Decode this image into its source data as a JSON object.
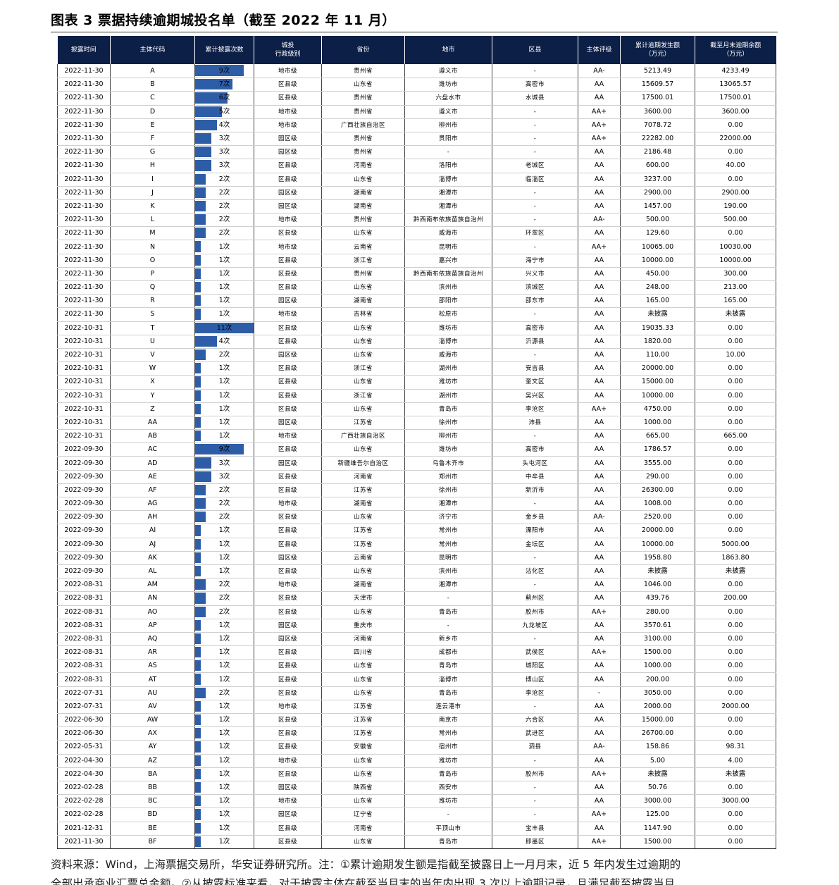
{
  "title": "图表 3 票据持续逾期城投名单（截至 2022 年 11 月）",
  "headers": [
    "披露时间",
    "主体代码",
    "累计披露次数",
    "城投\n行政级别",
    "省份",
    "地市",
    "区县",
    "主体评级",
    "累计逾期发生额\n（万元）",
    "截至月末逾期余额\n（万元）"
  ],
  "max_count": 11,
  "rows": [
    [
      "2022-11-30",
      "A",
      9,
      "地市级",
      "贵州省",
      "遵义市",
      "-",
      "AA-",
      "5213.49",
      "4233.49"
    ],
    [
      "2022-11-30",
      "B",
      7,
      "区县级",
      "山东省",
      "潍坊市",
      "高密市",
      "AA",
      "15609.57",
      "13065.57"
    ],
    [
      "2022-11-30",
      "C",
      6,
      "区县级",
      "贵州省",
      "六盘水市",
      "水城县",
      "AA",
      "17500.01",
      "17500.01"
    ],
    [
      "2022-11-30",
      "D",
      5,
      "地市级",
      "贵州省",
      "遵义市",
      "-",
      "AA+",
      "3600.00",
      "3600.00"
    ],
    [
      "2022-11-30",
      "E",
      4,
      "地市级",
      "广西壮族自治区",
      "柳州市",
      "-",
      "AA+",
      "7078.72",
      "0.00"
    ],
    [
      "2022-11-30",
      "F",
      3,
      "园区级",
      "贵州省",
      "贵阳市",
      "-",
      "AA+",
      "22282.00",
      "22000.00"
    ],
    [
      "2022-11-30",
      "G",
      3,
      "园区级",
      "贵州省",
      "-",
      "-",
      "AA",
      "2186.48",
      "0.00"
    ],
    [
      "2022-11-30",
      "H",
      3,
      "区县级",
      "河南省",
      "洛阳市",
      "老城区",
      "AA",
      "600.00",
      "40.00"
    ],
    [
      "2022-11-30",
      "I",
      2,
      "区县级",
      "山东省",
      "淄博市",
      "临淄区",
      "AA",
      "3237.00",
      "0.00"
    ],
    [
      "2022-11-30",
      "J",
      2,
      "园区级",
      "湖南省",
      "湘潭市",
      "-",
      "AA",
      "2900.00",
      "2900.00"
    ],
    [
      "2022-11-30",
      "K",
      2,
      "园区级",
      "湖南省",
      "湘潭市",
      "-",
      "AA",
      "1457.00",
      "190.00"
    ],
    [
      "2022-11-30",
      "L",
      2,
      "地市级",
      "贵州省",
      "黔西南布依族苗族自治州",
      "-",
      "AA-",
      "500.00",
      "500.00"
    ],
    [
      "2022-11-30",
      "M",
      2,
      "区县级",
      "山东省",
      "威海市",
      "环翠区",
      "AA",
      "129.60",
      "0.00"
    ],
    [
      "2022-11-30",
      "N",
      1,
      "地市级",
      "云南省",
      "昆明市",
      "-",
      "AA+",
      "10065.00",
      "10030.00"
    ],
    [
      "2022-11-30",
      "O",
      1,
      "区县级",
      "浙江省",
      "嘉兴市",
      "海宁市",
      "AA",
      "10000.00",
      "10000.00"
    ],
    [
      "2022-11-30",
      "P",
      1,
      "区县级",
      "贵州省",
      "黔西南布依族苗族自治州",
      "兴义市",
      "AA",
      "450.00",
      "300.00"
    ],
    [
      "2022-11-30",
      "Q",
      1,
      "区县级",
      "山东省",
      "滨州市",
      "滨城区",
      "AA",
      "248.00",
      "213.00"
    ],
    [
      "2022-11-30",
      "R",
      1,
      "园区级",
      "湖南省",
      "邵阳市",
      "邵东市",
      "AA",
      "165.00",
      "165.00"
    ],
    [
      "2022-11-30",
      "S",
      1,
      "地市级",
      "吉林省",
      "松原市",
      "-",
      "AA",
      "未披露",
      "未披露"
    ],
    [
      "2022-10-31",
      "T",
      11,
      "区县级",
      "山东省",
      "潍坊市",
      "高密市",
      "AA",
      "19035.33",
      "0.00"
    ],
    [
      "2022-10-31",
      "U",
      4,
      "区县级",
      "山东省",
      "淄博市",
      "沂源县",
      "AA",
      "1820.00",
      "0.00"
    ],
    [
      "2022-10-31",
      "V",
      2,
      "园区级",
      "山东省",
      "威海市",
      "-",
      "AA",
      "110.00",
      "10.00"
    ],
    [
      "2022-10-31",
      "W",
      1,
      "区县级",
      "浙江省",
      "湖州市",
      "安吉县",
      "AA",
      "20000.00",
      "0.00"
    ],
    [
      "2022-10-31",
      "X",
      1,
      "区县级",
      "山东省",
      "潍坊市",
      "奎文区",
      "AA",
      "15000.00",
      "0.00"
    ],
    [
      "2022-10-31",
      "Y",
      1,
      "区县级",
      "浙江省",
      "湖州市",
      "吴兴区",
      "AA",
      "10000.00",
      "0.00"
    ],
    [
      "2022-10-31",
      "Z",
      1,
      "区县级",
      "山东省",
      "青岛市",
      "李沧区",
      "AA+",
      "4750.00",
      "0.00"
    ],
    [
      "2022-10-31",
      "AA",
      1,
      "园区级",
      "江苏省",
      "徐州市",
      "沛县",
      "AA",
      "1000.00",
      "0.00"
    ],
    [
      "2022-10-31",
      "AB",
      1,
      "地市级",
      "广西壮族自治区",
      "柳州市",
      "-",
      "AA",
      "665.00",
      "665.00"
    ],
    [
      "2022-09-30",
      "AC",
      9,
      "区县级",
      "山东省",
      "潍坊市",
      "高密市",
      "AA",
      "1786.57",
      "0.00"
    ],
    [
      "2022-09-30",
      "AD",
      3,
      "园区级",
      "新疆维吾尔自治区",
      "乌鲁木齐市",
      "头屯河区",
      "AA",
      "3555.00",
      "0.00"
    ],
    [
      "2022-09-30",
      "AE",
      3,
      "区县级",
      "河南省",
      "郑州市",
      "中牟县",
      "AA",
      "290.00",
      "0.00"
    ],
    [
      "2022-09-30",
      "AF",
      2,
      "区县级",
      "江苏省",
      "徐州市",
      "新沂市",
      "AA",
      "26300.00",
      "0.00"
    ],
    [
      "2022-09-30",
      "AG",
      2,
      "地市级",
      "湖南省",
      "湘潭市",
      "-",
      "AA",
      "1008.00",
      "0.00"
    ],
    [
      "2022-09-30",
      "AH",
      2,
      "区县级",
      "山东省",
      "济宁市",
      "金乡县",
      "AA-",
      "2520.00",
      "0.00"
    ],
    [
      "2022-09-30",
      "AI",
      1,
      "区县级",
      "江苏省",
      "常州市",
      "溧阳市",
      "AA",
      "20000.00",
      "0.00"
    ],
    [
      "2022-09-30",
      "AJ",
      1,
      "区县级",
      "江苏省",
      "常州市",
      "金坛区",
      "AA",
      "10000.00",
      "5000.00"
    ],
    [
      "2022-09-30",
      "AK",
      1,
      "园区级",
      "云南省",
      "昆明市",
      "-",
      "AA",
      "1958.80",
      "1863.80"
    ],
    [
      "2022-09-30",
      "AL",
      1,
      "区县级",
      "山东省",
      "滨州市",
      "沾化区",
      "AA",
      "未披露",
      "未披露"
    ],
    [
      "2022-08-31",
      "AM",
      2,
      "地市级",
      "湖南省",
      "湘潭市",
      "-",
      "AA",
      "1046.00",
      "0.00"
    ],
    [
      "2022-08-31",
      "AN",
      2,
      "区县级",
      "天津市",
      "-",
      "蓟州区",
      "AA",
      "439.76",
      "200.00"
    ],
    [
      "2022-08-31",
      "AO",
      2,
      "区县级",
      "山东省",
      "青岛市",
      "胶州市",
      "AA+",
      "280.00",
      "0.00"
    ],
    [
      "2022-08-31",
      "AP",
      1,
      "园区级",
      "重庆市",
      "-",
      "九龙坡区",
      "AA",
      "3570.61",
      "0.00"
    ],
    [
      "2022-08-31",
      "AQ",
      1,
      "园区级",
      "河南省",
      "新乡市",
      "-",
      "AA",
      "3100.00",
      "0.00"
    ],
    [
      "2022-08-31",
      "AR",
      1,
      "区县级",
      "四川省",
      "成都市",
      "武侯区",
      "AA+",
      "1500.00",
      "0.00"
    ],
    [
      "2022-08-31",
      "AS",
      1,
      "区县级",
      "山东省",
      "青岛市",
      "城阳区",
      "AA",
      "1000.00",
      "0.00"
    ],
    [
      "2022-08-31",
      "AT",
      1,
      "区县级",
      "山东省",
      "淄博市",
      "博山区",
      "AA",
      "200.00",
      "0.00"
    ],
    [
      "2022-07-31",
      "AU",
      2,
      "区县级",
      "山东省",
      "青岛市",
      "李沧区",
      "-",
      "3050.00",
      "0.00"
    ],
    [
      "2022-07-31",
      "AV",
      1,
      "地市级",
      "江苏省",
      "连云港市",
      "-",
      "AA",
      "2000.00",
      "2000.00"
    ],
    [
      "2022-06-30",
      "AW",
      1,
      "区县级",
      "江苏省",
      "南京市",
      "六合区",
      "AA",
      "15000.00",
      "0.00"
    ],
    [
      "2022-06-30",
      "AX",
      1,
      "区县级",
      "江苏省",
      "常州市",
      "武进区",
      "AA",
      "26700.00",
      "0.00"
    ],
    [
      "2022-05-31",
      "AY",
      1,
      "区县级",
      "安徽省",
      "宿州市",
      "泗县",
      "AA-",
      "158.86",
      "98.31"
    ],
    [
      "2022-04-30",
      "AZ",
      1,
      "地市级",
      "山东省",
      "潍坊市",
      "-",
      "AA",
      "5.00",
      "4.00"
    ],
    [
      "2022-04-30",
      "BA",
      1,
      "区县级",
      "山东省",
      "青岛市",
      "胶州市",
      "AA+",
      "未披露",
      "未披露"
    ],
    [
      "2022-02-28",
      "BB",
      1,
      "园区级",
      "陕西省",
      "西安市",
      "-",
      "AA",
      "50.76",
      "0.00"
    ],
    [
      "2022-02-28",
      "BC",
      1,
      "地市级",
      "山东省",
      "潍坊市",
      "-",
      "AA",
      "3000.00",
      "3000.00"
    ],
    [
      "2022-02-28",
      "BD",
      1,
      "园区级",
      "辽宁省",
      "-",
      "-",
      "AA+",
      "125.00",
      "0.00"
    ],
    [
      "2021-12-31",
      "BE",
      1,
      "区县级",
      "河南省",
      "平顶山市",
      "宝丰县",
      "AA",
      "1147.90",
      "0.00"
    ],
    [
      "2021-11-30",
      "BF",
      1,
      "区县级",
      "山东省",
      "青岛市",
      "即墨区",
      "AA+",
      "1500.00",
      "0.00"
    ]
  ],
  "count_suffix": "次",
  "colors": {
    "header_bg": "#0b1f47",
    "bar": "#2e5da8"
  },
  "footer": {
    "line1": "资料来源：Wind，上海票据交易所，华安证券研究所。注：①累计逾期发生额是指截至披露日上一月月末，近 5 年内发生过逾期的",
    "line2": "全部出承商业汇票总金额。②从披露标准来看，对于披露主体在截至当月末的当年内出现 3 次以上逾期记录，且满足截至披露当月"
  }
}
